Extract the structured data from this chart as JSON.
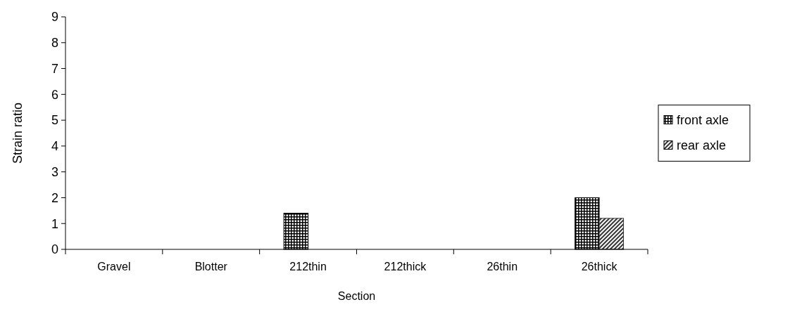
{
  "chart_data": {
    "type": "bar",
    "xlabel": "Section",
    "ylabel": "Strain ratio",
    "categories": [
      "Gravel",
      "Blotter",
      "212thin",
      "212thick",
      "26thin",
      "26thick"
    ],
    "series": [
      {
        "name": "front axle",
        "color": "#000000",
        "values": [
          null,
          null,
          1.4,
          null,
          null,
          2.0
        ]
      },
      {
        "name": "rear axle",
        "color": "#333333",
        "values": [
          null,
          null,
          null,
          null,
          null,
          1.2
        ]
      }
    ],
    "ylim": [
      0,
      9
    ],
    "yticks": [
      0,
      1,
      2,
      3,
      4,
      5,
      6,
      7,
      8,
      9
    ],
    "grid": false,
    "legend": "right"
  }
}
